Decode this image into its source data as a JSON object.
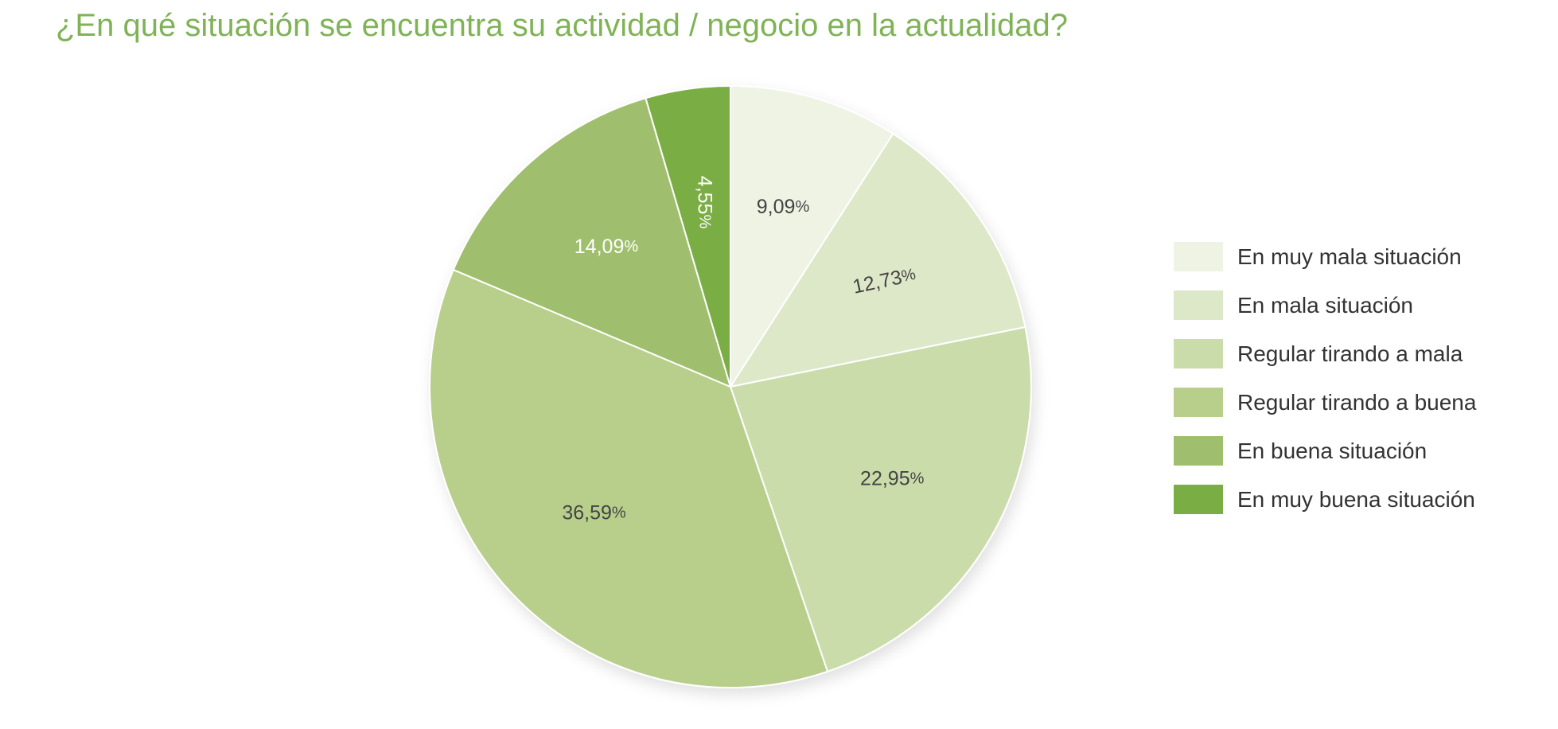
{
  "chart_data": {
    "type": "pie",
    "title": "¿En qué situación se encuentra su actividad / negocio en la actualidad?",
    "legend_position": "right",
    "slices": [
      {
        "label": "En muy mala situación",
        "value": 9.09,
        "display": "9,09",
        "color": "#eef3e4",
        "text_color": "#444444"
      },
      {
        "label": "En mala situación",
        "value": 12.73,
        "display": "12,73",
        "color": "#dde8c8",
        "text_color": "#444444"
      },
      {
        "label": "Regular tirando a mala",
        "value": 22.95,
        "display": "22,95",
        "color": "#cadcaa",
        "text_color": "#444444"
      },
      {
        "label": "Regular tirando a buena",
        "value": 36.59,
        "display": "36,59",
        "color": "#b8cf8b",
        "text_color": "#444444"
      },
      {
        "label": "En buena situación",
        "value": 14.09,
        "display": "14,09",
        "color": "#a0bf6e",
        "text_color": "#ffffff"
      },
      {
        "label": "En muy buena situación",
        "value": 4.55,
        "display": "4,55",
        "color": "#7aae45",
        "text_color": "#ffffff"
      }
    ]
  }
}
